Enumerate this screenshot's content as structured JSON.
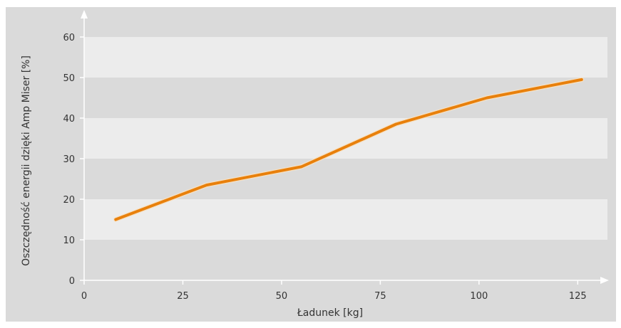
{
  "chart_data": {
    "type": "line",
    "title": "",
    "xlabel": "Ładunek [kg]",
    "ylabel": "Oszczędność energii dzięki Amp Miser [%]",
    "xlim": [
      0,
      130
    ],
    "ylim": [
      0,
      60
    ],
    "x_ticks": [
      0,
      25,
      50,
      75,
      100,
      125
    ],
    "y_ticks": [
      0,
      10,
      20,
      30,
      40,
      50,
      60
    ],
    "grid": "horizontal alternating bands",
    "series": [
      {
        "x": [
          8,
          31,
          55,
          79,
          102,
          126
        ],
        "values": [
          15,
          23.5,
          28,
          38.5,
          45,
          49.5
        ],
        "color": "#e8800c"
      }
    ],
    "colors": {
      "outer_background": "#dadada",
      "band_light": "#ececec",
      "band_dark": "#dadada",
      "axis": "#ffffff",
      "line": "#e8800c"
    }
  }
}
